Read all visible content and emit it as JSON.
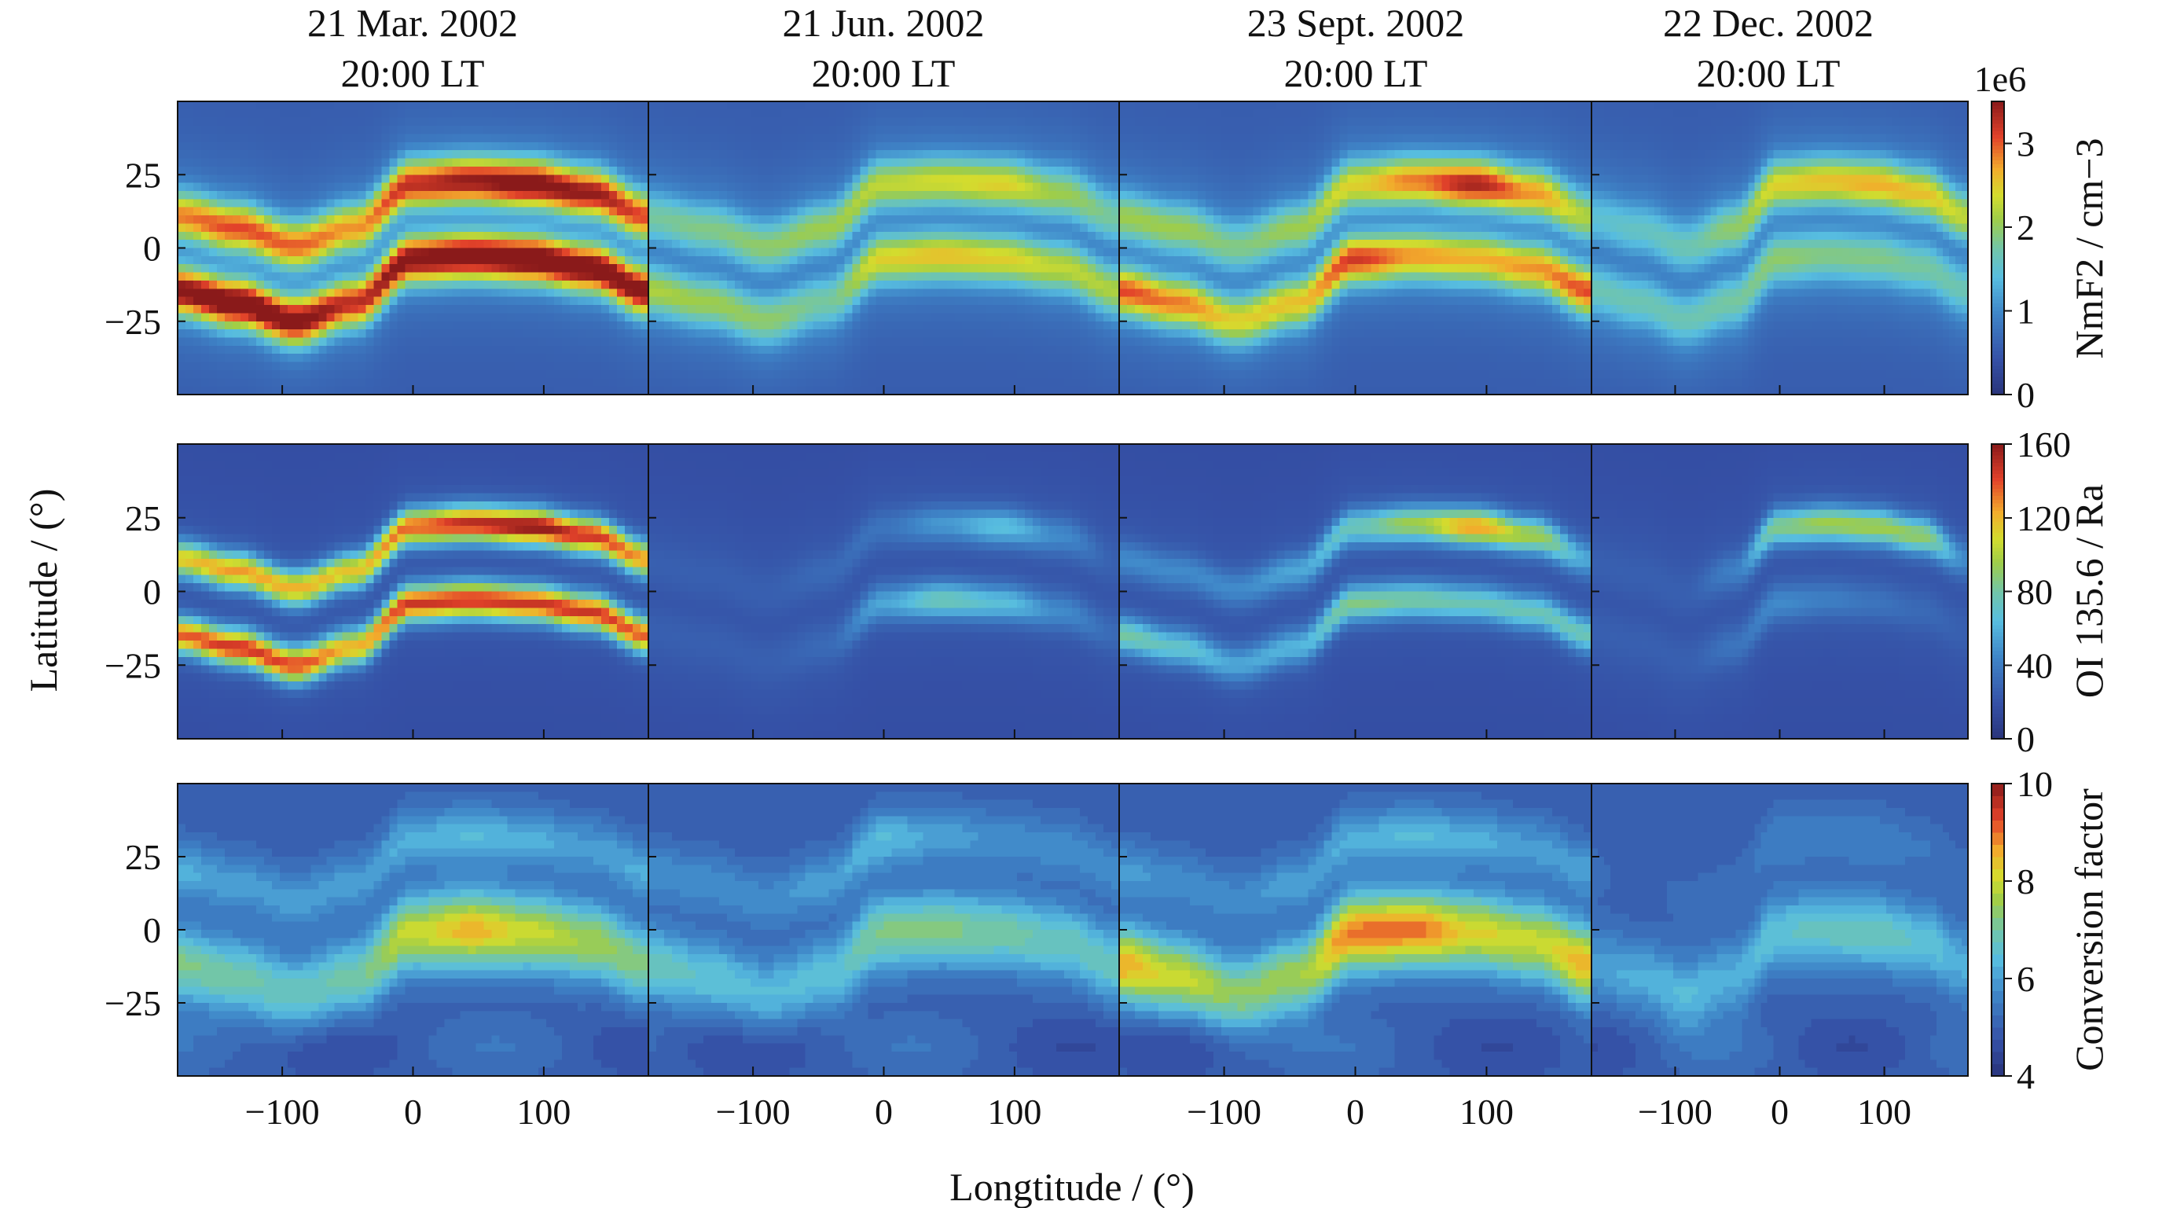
{
  "chart_data": {
    "type": "heatmap",
    "xlabel": "Longtitude / (°)",
    "ylabel": "Latitude / (°)",
    "xlim": [
      -180,
      180
    ],
    "ylim": [
      -50,
      50
    ],
    "xticks": [
      "−100",
      "0",
      "100"
    ],
    "xtick_values": [
      -100,
      0,
      100
    ],
    "yticks": [
      "25",
      "0",
      "−25"
    ],
    "ytick_values": [
      25,
      0,
      -25
    ],
    "columns": [
      {
        "line1": "21 Mar. 2002",
        "line2": "20:00 LT"
      },
      {
        "line1": "21 Jun. 2002",
        "line2": "20:00 LT"
      },
      {
        "line1": "23 Sept. 2002",
        "line2": "20:00 LT"
      },
      {
        "line1": "22 Dec. 2002",
        "line2": "20:00 LT"
      }
    ],
    "lon_nodes": [
      -180,
      -135,
      -90,
      -45,
      0,
      45,
      90,
      135,
      180
    ],
    "dip_equator_lat": [
      -2,
      -6,
      -12,
      -6,
      9,
      10,
      9,
      6,
      -2
    ],
    "rows": [
      {
        "name": "nmf2",
        "colorbar_label": "NmF2 / cm−3",
        "colorbar_multiplier": "1e6",
        "range": [
          0,
          3.5
        ],
        "ticks": [
          "0",
          "1",
          "2",
          "3"
        ],
        "tick_values": [
          0,
          1,
          2,
          3
        ],
        "crest_offset": 13,
        "crest_width": 8,
        "background": 0.55,
        "halo": 0.6,
        "panels": [
          {
            "north": [
              2.4,
              2.6,
              2.5,
              2.3,
              2.8,
              3.0,
              3.2,
              3.0,
              2.6
            ],
            "south": [
              3.2,
              3.4,
              3.2,
              2.8,
              3.2,
              3.3,
              3.4,
              3.3,
              3.2
            ]
          },
          {
            "north": [
              1.3,
              1.4,
              1.5,
              1.6,
              1.8,
              1.9,
              2.0,
              1.6,
              1.3
            ],
            "south": [
              1.7,
              1.6,
              1.5,
              1.3,
              2.0,
              2.1,
              2.0,
              1.8,
              1.7
            ]
          },
          {
            "north": [
              1.6,
              1.6,
              1.4,
              1.6,
              2.0,
              2.4,
              2.9,
              2.3,
              1.7
            ],
            "south": [
              2.6,
              2.4,
              2.0,
              2.1,
              2.7,
              2.3,
              2.2,
              2.3,
              2.6
            ]
          },
          {
            "north": [
              1.0,
              1.1,
              1.2,
              1.5,
              2.0,
              2.1,
              2.2,
              2.1,
              1.8
            ],
            "south": [
              1.2,
              1.2,
              1.2,
              1.3,
              1.5,
              1.4,
              1.4,
              1.3,
              1.2
            ]
          }
        ]
      },
      {
        "name": "oi1356",
        "colorbar_label": "OI 135.6 / Ra",
        "range": [
          0,
          160
        ],
        "ticks": [
          "0",
          "40",
          "80",
          "120",
          "160"
        ],
        "tick_values": [
          0,
          40,
          80,
          120,
          160
        ],
        "crest_offset": 13,
        "crest_width": 6,
        "background": 18,
        "halo": 8,
        "panels": [
          {
            "north": [
              110,
              120,
              115,
              110,
              130,
              145,
              155,
              140,
              120
            ],
            "south": [
              130,
              140,
              135,
              115,
              140,
              140,
              140,
              140,
              130
            ]
          },
          {
            "north": [
              20,
              20,
              20,
              25,
              30,
              45,
              60,
              40,
              20
            ],
            "south": [
              20,
              20,
              20,
              25,
              50,
              70,
              60,
              40,
              25
            ]
          },
          {
            "north": [
              40,
              40,
              40,
              50,
              70,
              90,
              120,
              90,
              50
            ],
            "south": [
              75,
              65,
              50,
              55,
              80,
              75,
              70,
              70,
              70
            ]
          },
          {
            "north": [
              20,
              20,
              20,
              35,
              80,
              90,
              90,
              85,
              40
            ],
            "south": [
              20,
              20,
              20,
              30,
              40,
              35,
              30,
              25,
              20
            ]
          }
        ]
      },
      {
        "name": "conversion",
        "colorbar_label": "Conversion factor",
        "range": [
          4,
          10
        ],
        "ticks": [
          "4",
          "6",
          "8",
          "10"
        ],
        "tick_values": [
          4,
          6,
          8,
          10
        ],
        "crest_offset": 10,
        "crest_width": 13,
        "background": 5.0,
        "halo": 5.6,
        "panels": [
          {
            "north": [
              6.2,
              6.0,
              6.0,
              6.0,
              6.2,
              6.4,
              6.2,
              6.0,
              6.2
            ],
            "south": [
              7.2,
              7.0,
              6.8,
              7.0,
              8.0,
              8.5,
              8.0,
              7.6,
              7.2
            ]
          },
          {
            "north": [
              5.8,
              5.8,
              5.8,
              6.0,
              6.4,
              6.0,
              5.8,
              5.8,
              5.8
            ],
            "south": [
              6.8,
              6.6,
              6.4,
              6.5,
              7.2,
              7.2,
              7.0,
              6.8,
              6.8
            ]
          },
          {
            "north": [
              6.0,
              5.8,
              5.8,
              6.0,
              6.2,
              6.4,
              6.2,
              6.0,
              6.0
            ],
            "south": [
              8.6,
              8.0,
              7.4,
              7.6,
              9.0,
              9.0,
              8.2,
              8.0,
              8.6
            ]
          },
          {
            "north": [
              5.2,
              5.0,
              5.2,
              5.2,
              5.6,
              5.6,
              5.6,
              5.4,
              5.2
            ],
            "south": [
              6.0,
              6.2,
              6.4,
              6.2,
              6.6,
              6.8,
              6.8,
              6.6,
              6.2
            ]
          }
        ]
      }
    ]
  }
}
